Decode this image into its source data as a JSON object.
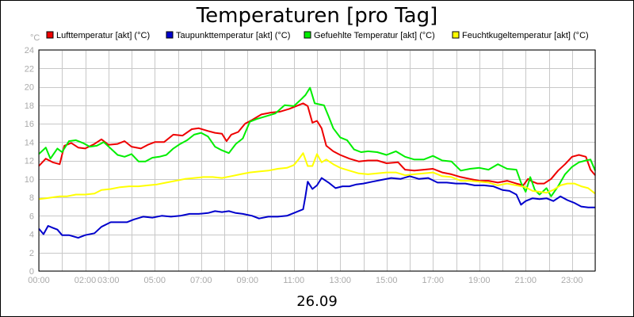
{
  "chart_data": {
    "type": "line",
    "title": "Temperaturen [pro Tag]",
    "date_label": "26.09",
    "unit_label": "°C",
    "xlim": [
      0,
      24
    ],
    "ylim": [
      0,
      24
    ],
    "y_ticks": [
      0,
      2,
      4,
      6,
      8,
      10,
      12,
      14,
      16,
      18,
      20,
      22,
      24
    ],
    "x_tick_labels": [
      {
        "h": 0,
        "label": "00:00"
      },
      {
        "h": 2,
        "label": "02:00"
      },
      {
        "h": 3,
        "label": "03:00"
      },
      {
        "h": 5,
        "label": "05:00"
      },
      {
        "h": 7,
        "label": "07:00"
      },
      {
        "h": 9,
        "label": "09:00"
      },
      {
        "h": 11,
        "label": "11:00"
      },
      {
        "h": 13,
        "label": "13:00"
      },
      {
        "h": 15,
        "label": "15:00"
      },
      {
        "h": 17,
        "label": "17:00"
      },
      {
        "h": 19,
        "label": "19:00"
      },
      {
        "h": 21,
        "label": "21:00"
      },
      {
        "h": 23,
        "label": "23:00"
      }
    ],
    "grid": true,
    "legend_position": "top",
    "series": [
      {
        "name": "Lufttemperatur [akt] (°C)",
        "color": "#ee0000",
        "points": [
          [
            0,
            11.4
          ],
          [
            0.3,
            12.2
          ],
          [
            0.6,
            11.8
          ],
          [
            0.9,
            11.6
          ],
          [
            1.1,
            13.6
          ],
          [
            1.4,
            13.9
          ],
          [
            1.7,
            13.4
          ],
          [
            2.0,
            13.3
          ],
          [
            2.4,
            13.8
          ],
          [
            2.7,
            14.3
          ],
          [
            3.0,
            13.7
          ],
          [
            3.4,
            13.8
          ],
          [
            3.7,
            14.1
          ],
          [
            4.0,
            13.5
          ],
          [
            4.4,
            13.3
          ],
          [
            4.7,
            13.7
          ],
          [
            5.0,
            14.0
          ],
          [
            5.4,
            14.0
          ],
          [
            5.8,
            14.8
          ],
          [
            6.2,
            14.7
          ],
          [
            6.6,
            15.4
          ],
          [
            6.9,
            15.5
          ],
          [
            7.3,
            15.2
          ],
          [
            7.6,
            15.0
          ],
          [
            7.9,
            14.9
          ],
          [
            8.1,
            14.1
          ],
          [
            8.3,
            14.8
          ],
          [
            8.6,
            15.1
          ],
          [
            8.9,
            16.0
          ],
          [
            9.2,
            16.4
          ],
          [
            9.6,
            17.0
          ],
          [
            10.0,
            17.2
          ],
          [
            10.4,
            17.3
          ],
          [
            10.8,
            17.6
          ],
          [
            11.1,
            17.9
          ],
          [
            11.4,
            18.2
          ],
          [
            11.6,
            17.9
          ],
          [
            11.8,
            16.1
          ],
          [
            12.0,
            16.3
          ],
          [
            12.2,
            15.5
          ],
          [
            12.4,
            13.6
          ],
          [
            12.7,
            13.0
          ],
          [
            13.0,
            12.6
          ],
          [
            13.4,
            12.2
          ],
          [
            13.8,
            11.9
          ],
          [
            14.2,
            12.0
          ],
          [
            14.6,
            12.0
          ],
          [
            15.0,
            11.7
          ],
          [
            15.5,
            11.8
          ],
          [
            15.8,
            11.0
          ],
          [
            16.2,
            10.9
          ],
          [
            16.6,
            11.0
          ],
          [
            17.0,
            11.1
          ],
          [
            17.4,
            10.7
          ],
          [
            17.8,
            10.5
          ],
          [
            18.2,
            10.2
          ],
          [
            18.6,
            10.0
          ],
          [
            19.0,
            9.8
          ],
          [
            19.4,
            9.8
          ],
          [
            19.8,
            9.6
          ],
          [
            20.2,
            9.8
          ],
          [
            20.6,
            9.5
          ],
          [
            20.9,
            9.3
          ],
          [
            21.1,
            10.0
          ],
          [
            21.3,
            9.7
          ],
          [
            21.5,
            9.5
          ],
          [
            21.8,
            9.5
          ],
          [
            22.1,
            10.0
          ],
          [
            22.4,
            10.9
          ],
          [
            22.7,
            11.6
          ],
          [
            23.0,
            12.4
          ],
          [
            23.3,
            12.6
          ],
          [
            23.6,
            12.4
          ],
          [
            23.8,
            11.0
          ],
          [
            24.0,
            10.4
          ]
        ]
      },
      {
        "name": "Taupunkttemperatur [akt] (°C)",
        "color": "#0000cc",
        "points": [
          [
            0,
            4.6
          ],
          [
            0.2,
            4.0
          ],
          [
            0.4,
            4.9
          ],
          [
            0.6,
            4.7
          ],
          [
            0.8,
            4.5
          ],
          [
            1.0,
            3.9
          ],
          [
            1.3,
            3.9
          ],
          [
            1.7,
            3.6
          ],
          [
            2.0,
            3.9
          ],
          [
            2.4,
            4.1
          ],
          [
            2.7,
            4.8
          ],
          [
            3.1,
            5.3
          ],
          [
            3.5,
            5.3
          ],
          [
            3.8,
            5.3
          ],
          [
            4.1,
            5.6
          ],
          [
            4.5,
            5.9
          ],
          [
            4.9,
            5.8
          ],
          [
            5.3,
            6.0
          ],
          [
            5.7,
            5.9
          ],
          [
            6.1,
            6.0
          ],
          [
            6.5,
            6.2
          ],
          [
            6.9,
            6.2
          ],
          [
            7.3,
            6.3
          ],
          [
            7.6,
            6.5
          ],
          [
            7.9,
            6.4
          ],
          [
            8.2,
            6.5
          ],
          [
            8.5,
            6.3
          ],
          [
            8.8,
            6.2
          ],
          [
            9.2,
            6.0
          ],
          [
            9.5,
            5.7
          ],
          [
            9.9,
            5.9
          ],
          [
            10.3,
            5.9
          ],
          [
            10.7,
            6.0
          ],
          [
            11.0,
            6.3
          ],
          [
            11.2,
            6.5
          ],
          [
            11.4,
            6.7
          ],
          [
            11.5,
            8.1
          ],
          [
            11.6,
            9.7
          ],
          [
            11.8,
            8.9
          ],
          [
            12.0,
            9.3
          ],
          [
            12.2,
            10.1
          ],
          [
            12.5,
            9.6
          ],
          [
            12.8,
            9.0
          ],
          [
            13.1,
            9.2
          ],
          [
            13.4,
            9.2
          ],
          [
            13.7,
            9.4
          ],
          [
            14.0,
            9.5
          ],
          [
            14.4,
            9.7
          ],
          [
            14.8,
            9.9
          ],
          [
            15.2,
            10.1
          ],
          [
            15.6,
            10.0
          ],
          [
            16.0,
            10.3
          ],
          [
            16.4,
            10.0
          ],
          [
            16.8,
            10.1
          ],
          [
            17.2,
            9.6
          ],
          [
            17.6,
            9.6
          ],
          [
            18.0,
            9.5
          ],
          [
            18.4,
            9.5
          ],
          [
            18.8,
            9.3
          ],
          [
            19.2,
            9.3
          ],
          [
            19.6,
            9.2
          ],
          [
            20.0,
            8.8
          ],
          [
            20.3,
            8.7
          ],
          [
            20.6,
            8.3
          ],
          [
            20.8,
            7.2
          ],
          [
            21.0,
            7.6
          ],
          [
            21.3,
            7.9
          ],
          [
            21.6,
            7.8
          ],
          [
            21.9,
            7.9
          ],
          [
            22.2,
            7.6
          ],
          [
            22.5,
            8.1
          ],
          [
            22.8,
            7.7
          ],
          [
            23.1,
            7.4
          ],
          [
            23.4,
            7.0
          ],
          [
            23.7,
            6.9
          ],
          [
            24.0,
            6.9
          ]
        ]
      },
      {
        "name": "Gefuehlte Temperatur [akt] (°C)",
        "color": "#00ee00",
        "points": [
          [
            0,
            12.7
          ],
          [
            0.3,
            13.4
          ],
          [
            0.5,
            12.2
          ],
          [
            0.8,
            13.3
          ],
          [
            1.0,
            12.9
          ],
          [
            1.3,
            14.1
          ],
          [
            1.6,
            14.2
          ],
          [
            1.9,
            13.9
          ],
          [
            2.2,
            13.5
          ],
          [
            2.5,
            13.6
          ],
          [
            2.8,
            14.0
          ],
          [
            3.1,
            13.3
          ],
          [
            3.4,
            12.6
          ],
          [
            3.7,
            12.4
          ],
          [
            4.0,
            12.7
          ],
          [
            4.3,
            11.9
          ],
          [
            4.6,
            11.9
          ],
          [
            4.9,
            12.3
          ],
          [
            5.2,
            12.4
          ],
          [
            5.5,
            12.6
          ],
          [
            5.8,
            13.3
          ],
          [
            6.1,
            13.8
          ],
          [
            6.4,
            14.2
          ],
          [
            6.7,
            14.8
          ],
          [
            7.0,
            15.0
          ],
          [
            7.3,
            14.6
          ],
          [
            7.6,
            13.5
          ],
          [
            7.9,
            13.1
          ],
          [
            8.2,
            12.8
          ],
          [
            8.5,
            13.8
          ],
          [
            8.8,
            14.4
          ],
          [
            9.1,
            16.2
          ],
          [
            9.4,
            16.5
          ],
          [
            9.8,
            16.8
          ],
          [
            10.2,
            17.1
          ],
          [
            10.6,
            18.0
          ],
          [
            11.0,
            17.9
          ],
          [
            11.3,
            18.6
          ],
          [
            11.5,
            19.1
          ],
          [
            11.7,
            19.9
          ],
          [
            11.9,
            18.2
          ],
          [
            12.1,
            18.1
          ],
          [
            12.3,
            18.0
          ],
          [
            12.5,
            16.8
          ],
          [
            12.7,
            15.5
          ],
          [
            13.0,
            14.5
          ],
          [
            13.3,
            14.2
          ],
          [
            13.6,
            13.2
          ],
          [
            13.9,
            12.9
          ],
          [
            14.2,
            13.0
          ],
          [
            14.6,
            12.9
          ],
          [
            15.0,
            12.6
          ],
          [
            15.4,
            13.0
          ],
          [
            15.8,
            12.4
          ],
          [
            16.2,
            12.1
          ],
          [
            16.6,
            12.1
          ],
          [
            17.0,
            12.5
          ],
          [
            17.4,
            12.0
          ],
          [
            17.8,
            11.9
          ],
          [
            18.2,
            10.9
          ],
          [
            18.6,
            11.1
          ],
          [
            19.0,
            11.2
          ],
          [
            19.4,
            11.0
          ],
          [
            19.8,
            11.6
          ],
          [
            20.2,
            11.1
          ],
          [
            20.6,
            11.0
          ],
          [
            20.8,
            9.6
          ],
          [
            21.0,
            8.6
          ],
          [
            21.2,
            10.2
          ],
          [
            21.4,
            8.8
          ],
          [
            21.6,
            8.3
          ],
          [
            21.9,
            9.0
          ],
          [
            22.1,
            8.1
          ],
          [
            22.4,
            9.2
          ],
          [
            22.7,
            10.5
          ],
          [
            23.0,
            11.3
          ],
          [
            23.3,
            11.8
          ],
          [
            23.6,
            12.0
          ],
          [
            23.8,
            12.1
          ],
          [
            24.0,
            10.9
          ]
        ]
      },
      {
        "name": "Feuchtkugeltemperatur [akt] (°C)",
        "color": "#ffff00",
        "points": [
          [
            0,
            7.8
          ],
          [
            0.3,
            7.9
          ],
          [
            0.6,
            8.0
          ],
          [
            0.9,
            8.1
          ],
          [
            1.2,
            8.1
          ],
          [
            1.6,
            8.3
          ],
          [
            2.0,
            8.3
          ],
          [
            2.4,
            8.4
          ],
          [
            2.7,
            8.8
          ],
          [
            3.1,
            8.9
          ],
          [
            3.5,
            9.1
          ],
          [
            3.9,
            9.2
          ],
          [
            4.3,
            9.2
          ],
          [
            4.7,
            9.3
          ],
          [
            5.1,
            9.4
          ],
          [
            5.5,
            9.6
          ],
          [
            5.9,
            9.8
          ],
          [
            6.3,
            10.0
          ],
          [
            6.7,
            10.1
          ],
          [
            7.1,
            10.2
          ],
          [
            7.5,
            10.2
          ],
          [
            7.9,
            10.1
          ],
          [
            8.3,
            10.3
          ],
          [
            8.7,
            10.5
          ],
          [
            9.1,
            10.7
          ],
          [
            9.5,
            10.8
          ],
          [
            9.9,
            10.9
          ],
          [
            10.3,
            11.1
          ],
          [
            10.7,
            11.2
          ],
          [
            11.0,
            11.5
          ],
          [
            11.2,
            12.1
          ],
          [
            11.4,
            12.8
          ],
          [
            11.6,
            11.4
          ],
          [
            11.8,
            11.4
          ],
          [
            12.0,
            12.7
          ],
          [
            12.2,
            11.8
          ],
          [
            12.4,
            12.1
          ],
          [
            12.7,
            11.6
          ],
          [
            13.0,
            11.2
          ],
          [
            13.4,
            10.9
          ],
          [
            13.8,
            10.6
          ],
          [
            14.2,
            10.5
          ],
          [
            14.6,
            10.6
          ],
          [
            15.0,
            10.7
          ],
          [
            15.4,
            10.7
          ],
          [
            15.8,
            10.4
          ],
          [
            16.2,
            10.5
          ],
          [
            16.6,
            10.6
          ],
          [
            17.0,
            10.7
          ],
          [
            17.4,
            10.3
          ],
          [
            17.8,
            10.2
          ],
          [
            18.2,
            9.8
          ],
          [
            18.6,
            9.8
          ],
          [
            19.0,
            9.7
          ],
          [
            19.4,
            9.6
          ],
          [
            19.8,
            9.3
          ],
          [
            20.2,
            9.5
          ],
          [
            20.6,
            9.3
          ],
          [
            21.0,
            9.1
          ],
          [
            21.3,
            8.7
          ],
          [
            21.6,
            8.6
          ],
          [
            21.9,
            8.5
          ],
          [
            22.2,
            8.8
          ],
          [
            22.5,
            9.3
          ],
          [
            22.8,
            9.5
          ],
          [
            23.1,
            9.5
          ],
          [
            23.4,
            9.2
          ],
          [
            23.7,
            9.0
          ],
          [
            24.0,
            8.4
          ]
        ]
      }
    ]
  }
}
